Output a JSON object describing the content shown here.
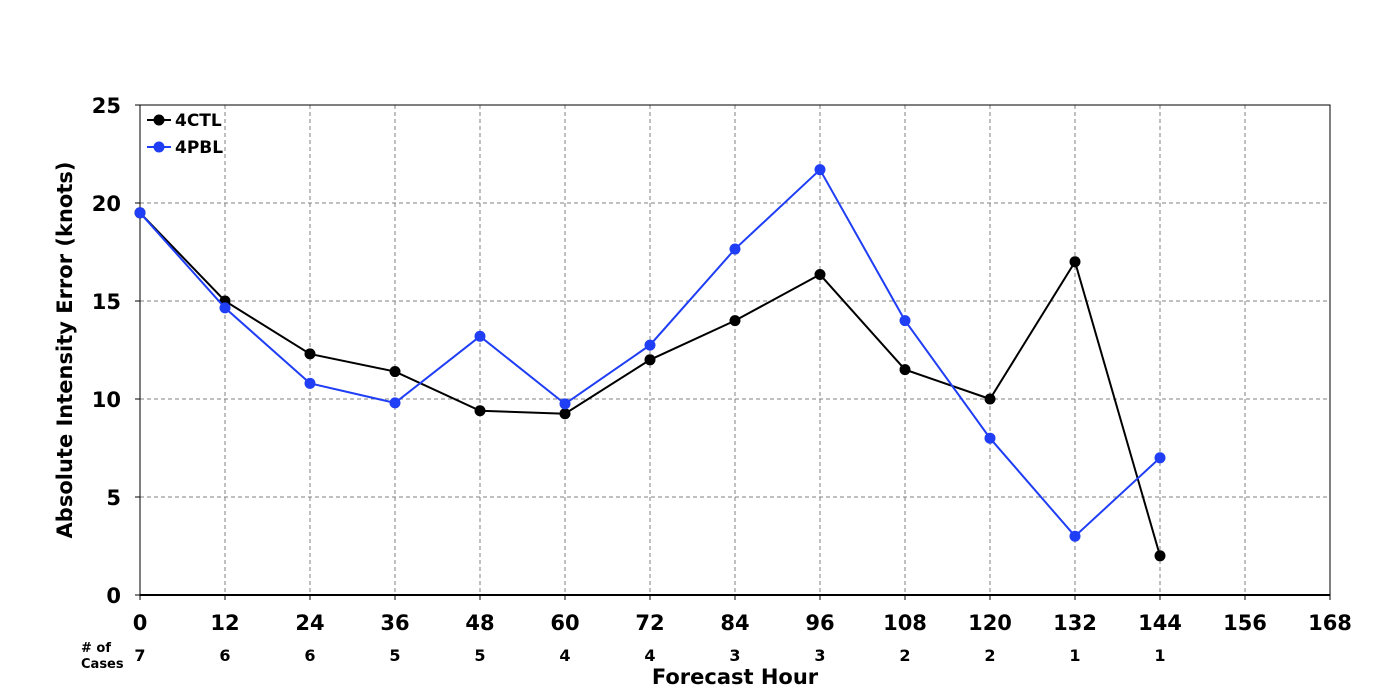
{
  "chart_data": {
    "type": "line",
    "xlabel": "Forecast Hour",
    "ylabel": "Absolute Intensity Error (knots)",
    "xlim": [
      0,
      168
    ],
    "ylim": [
      0,
      25
    ],
    "x_ticks": [
      0,
      12,
      24,
      36,
      48,
      60,
      72,
      84,
      96,
      108,
      120,
      132,
      144,
      156,
      168
    ],
    "y_ticks": [
      0,
      5,
      10,
      15,
      20,
      25
    ],
    "grid": true,
    "legend_position": "top-left",
    "cases_label_line1": "# of",
    "cases_label_line2": "Cases",
    "cases": [
      {
        "x": 0,
        "n": "7"
      },
      {
        "x": 12,
        "n": "6"
      },
      {
        "x": 24,
        "n": "6"
      },
      {
        "x": 36,
        "n": "5"
      },
      {
        "x": 48,
        "n": "5"
      },
      {
        "x": 60,
        "n": "4"
      },
      {
        "x": 72,
        "n": "4"
      },
      {
        "x": 84,
        "n": "3"
      },
      {
        "x": 96,
        "n": "3"
      },
      {
        "x": 108,
        "n": "2"
      },
      {
        "x": 120,
        "n": "2"
      },
      {
        "x": 132,
        "n": "1"
      },
      {
        "x": 144,
        "n": "1"
      }
    ],
    "x": [
      0,
      12,
      24,
      36,
      48,
      60,
      72,
      84,
      96,
      108,
      120,
      132,
      144
    ],
    "series": [
      {
        "name": "4CTL",
        "color": "#000000",
        "values": [
          19.5,
          15.0,
          12.3,
          11.4,
          9.4,
          9.25,
          12.0,
          14.0,
          16.35,
          11.5,
          10.0,
          17.0,
          2.0
        ]
      },
      {
        "name": "4PBL",
        "color": "#1f3ef5",
        "values": [
          19.5,
          14.65,
          10.8,
          9.8,
          13.2,
          9.75,
          12.75,
          17.65,
          21.7,
          14.0,
          8.0,
          3.0,
          7.0
        ]
      }
    ]
  }
}
